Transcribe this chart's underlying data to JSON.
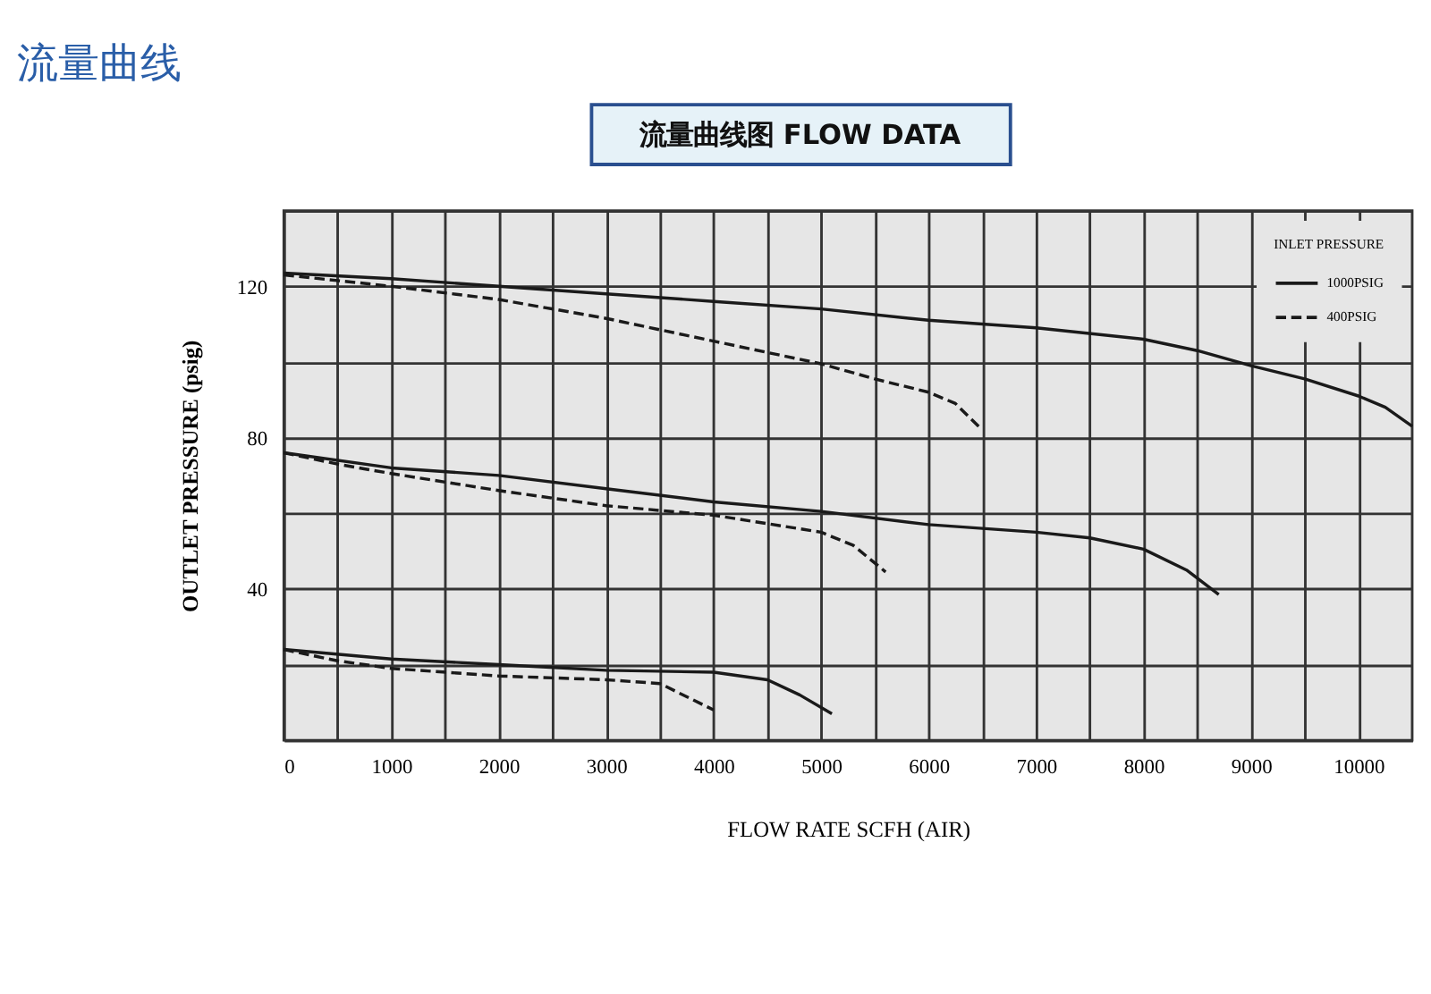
{
  "chart_data": {
    "type": "line",
    "title": "流量曲线",
    "subtitle": "流量曲线图 FLOW DATA",
    "xlabel": "FLOW RATE SCFH (AIR)",
    "ylabel": "OUTLET PRESSURE (psig)",
    "legend_title": "INLET PRESSURE",
    "legend": "top right",
    "grid": true,
    "marker": "none",
    "xlim": [
      0,
      10500
    ],
    "ylim": [
      0,
      140
    ],
    "xticks": [
      0,
      {
        "value": 500,
        "label": null
      },
      1000,
      {
        "value": 1500,
        "label": null
      },
      2000,
      {
        "value": 2500,
        "label": null
      },
      3000,
      {
        "value": 3500,
        "label": null
      },
      4000,
      {
        "value": 4500,
        "label": null
      },
      5000,
      {
        "value": 5500,
        "label": null
      },
      6000,
      {
        "value": 6500,
        "label": null
      },
      7000,
      {
        "value": 7500,
        "label": null
      },
      8000,
      {
        "value": 8500,
        "label": null
      },
      9000,
      {
        "value": 9500,
        "label": null
      },
      10000
    ],
    "yticks": [
      {
        "value": 0,
        "label": null
      },
      {
        "value": 20,
        "label": null
      },
      40,
      {
        "value": 60,
        "label": null
      },
      80,
      {
        "value": 100,
        "label": null
      },
      120,
      {
        "value": 140,
        "label": null
      }
    ],
    "series": [
      {
        "name": "1000PSIG",
        "color": "#1a1a1a",
        "line_style": "solid",
        "x": [
          0,
          1000,
          2000,
          3000,
          4000,
          5000,
          6000,
          7000,
          8000,
          8500,
          9000,
          9500,
          10000,
          10250,
          10500
        ],
        "values": [
          123.5,
          122,
          120,
          118,
          116,
          114,
          111,
          109,
          106,
          103,
          99,
          95.5,
          91,
          88,
          83
        ]
      },
      {
        "name": "400PSIG",
        "color": "#1a1a1a",
        "line_style": "dashed",
        "x": [
          0,
          500,
          1000,
          2000,
          3000,
          4000,
          5000,
          5500,
          6000,
          6250,
          6500
        ],
        "values": [
          123,
          121.5,
          120,
          116.5,
          111.5,
          105.5,
          99.5,
          95.5,
          92,
          89,
          82
        ]
      },
      {
        "color": "#1a1a1a",
        "line_style": "solid",
        "x": [
          0,
          1000,
          2000,
          3000,
          4000,
          5000,
          6000,
          7000,
          7500,
          8000,
          8400,
          8700
        ],
        "values": [
          76,
          72,
          70,
          66.5,
          63,
          60.5,
          57,
          55,
          53.5,
          50.5,
          45,
          38.5
        ]
      },
      {
        "color": "#1a1a1a",
        "line_style": "dashed",
        "x": [
          0,
          500,
          1000,
          2000,
          3000,
          4000,
          5000,
          5300,
          5600
        ],
        "values": [
          76,
          73,
          70.5,
          66,
          62,
          59.5,
          55,
          51.5,
          44.5
        ]
      },
      {
        "color": "#1a1a1a",
        "line_style": "solid",
        "x": [
          0,
          1000,
          2000,
          3000,
          4000,
          4500,
          4800,
          5100
        ],
        "values": [
          24,
          21.5,
          20,
          18.5,
          18,
          16,
          12,
          7
        ]
      },
      {
        "color": "#1a1a1a",
        "line_style": "dashed",
        "x": [
          0,
          500,
          1000,
          2000,
          3000,
          3500,
          4000
        ],
        "values": [
          24,
          21,
          19,
          17,
          16,
          15,
          8
        ]
      }
    ]
  }
}
